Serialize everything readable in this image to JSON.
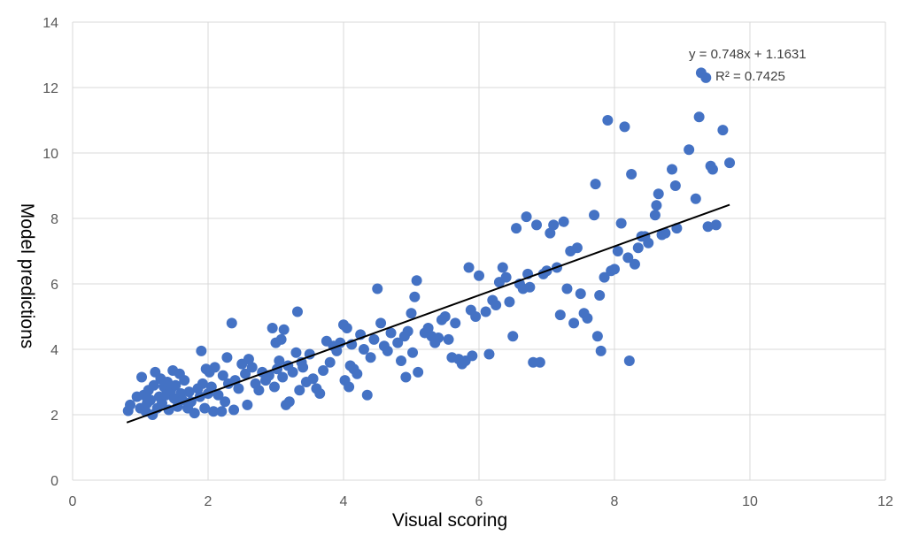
{
  "chart_data": {
    "type": "scatter",
    "xlabel": "Visual scoring",
    "ylabel": "Model predictions",
    "xlim": [
      0,
      12
    ],
    "ylim": [
      0,
      14
    ],
    "xticks": [
      0,
      2,
      4,
      6,
      8,
      10,
      12
    ],
    "yticks": [
      0,
      2,
      4,
      6,
      8,
      10,
      12,
      14
    ],
    "grid": true,
    "marker_color": "#4472c4",
    "trendline": {
      "slope": 0.748,
      "intercept": 1.1631,
      "x_range": [
        0.8,
        9.7
      ],
      "color": "#000000"
    },
    "annotations": [
      "y = 0.748x + 1.1631",
      "R² = 0.7425"
    ],
    "points": [
      [
        0.82,
        2.12
      ],
      [
        0.85,
        2.3
      ],
      [
        0.95,
        2.55
      ],
      [
        1.0,
        2.2
      ],
      [
        1.02,
        3.15
      ],
      [
        1.05,
        2.6
      ],
      [
        1.08,
        2.1
      ],
      [
        1.1,
        2.35
      ],
      [
        1.12,
        2.75
      ],
      [
        1.15,
        2.45
      ],
      [
        1.18,
        2.0
      ],
      [
        1.2,
        2.9
      ],
      [
        1.22,
        3.3
      ],
      [
        1.25,
        2.2
      ],
      [
        1.28,
        2.55
      ],
      [
        1.3,
        3.1
      ],
      [
        1.32,
        2.35
      ],
      [
        1.35,
        2.85
      ],
      [
        1.38,
        2.6
      ],
      [
        1.4,
        3.0
      ],
      [
        1.42,
        2.15
      ],
      [
        1.45,
        2.75
      ],
      [
        1.48,
        3.35
      ],
      [
        1.5,
        2.5
      ],
      [
        1.52,
        2.9
      ],
      [
        1.55,
        2.25
      ],
      [
        1.58,
        3.25
      ],
      [
        1.6,
        2.65
      ],
      [
        1.62,
        2.45
      ],
      [
        1.65,
        3.05
      ],
      [
        1.7,
        2.2
      ],
      [
        1.72,
        2.7
      ],
      [
        1.75,
        2.4
      ],
      [
        1.8,
        2.05
      ],
      [
        1.85,
        2.8
      ],
      [
        1.88,
        2.55
      ],
      [
        1.9,
        3.95
      ],
      [
        1.92,
        2.95
      ],
      [
        1.95,
        2.2
      ],
      [
        1.97,
        3.4
      ],
      [
        2.0,
        2.65
      ],
      [
        2.02,
        3.3
      ],
      [
        2.05,
        2.85
      ],
      [
        2.08,
        2.1
      ],
      [
        2.1,
        3.45
      ],
      [
        2.15,
        2.6
      ],
      [
        2.2,
        2.1
      ],
      [
        2.22,
        3.2
      ],
      [
        2.25,
        2.4
      ],
      [
        2.28,
        3.75
      ],
      [
        2.3,
        2.95
      ],
      [
        2.35,
        4.8
      ],
      [
        2.38,
        2.15
      ],
      [
        2.4,
        3.05
      ],
      [
        2.45,
        2.8
      ],
      [
        2.5,
        3.55
      ],
      [
        2.55,
        3.25
      ],
      [
        2.58,
        2.3
      ],
      [
        2.6,
        3.7
      ],
      [
        2.65,
        3.45
      ],
      [
        2.7,
        2.95
      ],
      [
        2.75,
        2.75
      ],
      [
        2.8,
        3.3
      ],
      [
        2.85,
        3.05
      ],
      [
        2.9,
        3.2
      ],
      [
        2.95,
        4.65
      ],
      [
        2.98,
        2.85
      ],
      [
        3.0,
        4.2
      ],
      [
        3.02,
        3.4
      ],
      [
        3.05,
        3.65
      ],
      [
        3.08,
        4.3
      ],
      [
        3.1,
        3.15
      ],
      [
        3.12,
        4.6
      ],
      [
        3.15,
        2.3
      ],
      [
        3.18,
        3.5
      ],
      [
        3.2,
        2.4
      ],
      [
        3.25,
        3.3
      ],
      [
        3.3,
        3.9
      ],
      [
        3.32,
        5.15
      ],
      [
        3.35,
        2.75
      ],
      [
        3.38,
        3.6
      ],
      [
        3.4,
        3.45
      ],
      [
        3.45,
        3.0
      ],
      [
        3.5,
        3.85
      ],
      [
        3.55,
        3.1
      ],
      [
        3.6,
        2.8
      ],
      [
        3.65,
        2.65
      ],
      [
        3.7,
        3.35
      ],
      [
        3.75,
        4.25
      ],
      [
        3.8,
        3.6
      ],
      [
        3.85,
        4.1
      ],
      [
        3.9,
        3.95
      ],
      [
        3.95,
        4.2
      ],
      [
        4.0,
        4.75
      ],
      [
        4.02,
        3.05
      ],
      [
        4.05,
        4.65
      ],
      [
        4.08,
        2.85
      ],
      [
        4.1,
        3.5
      ],
      [
        4.12,
        4.15
      ],
      [
        4.15,
        3.4
      ],
      [
        4.2,
        3.25
      ],
      [
        4.25,
        4.45
      ],
      [
        4.3,
        4.0
      ],
      [
        4.35,
        2.6
      ],
      [
        4.4,
        3.75
      ],
      [
        4.45,
        4.3
      ],
      [
        4.5,
        5.85
      ],
      [
        4.55,
        4.8
      ],
      [
        4.6,
        4.1
      ],
      [
        4.65,
        3.95
      ],
      [
        4.7,
        4.5
      ],
      [
        4.8,
        4.2
      ],
      [
        4.85,
        3.65
      ],
      [
        4.9,
        4.4
      ],
      [
        4.92,
        3.15
      ],
      [
        4.95,
        4.55
      ],
      [
        5.0,
        5.1
      ],
      [
        5.02,
        3.9
      ],
      [
        5.05,
        5.6
      ],
      [
        5.08,
        6.1
      ],
      [
        5.1,
        3.3
      ],
      [
        5.2,
        4.5
      ],
      [
        5.25,
        4.65
      ],
      [
        5.3,
        4.4
      ],
      [
        5.35,
        4.2
      ],
      [
        5.4,
        4.35
      ],
      [
        5.45,
        4.9
      ],
      [
        5.5,
        5.0
      ],
      [
        5.55,
        4.3
      ],
      [
        5.6,
        3.75
      ],
      [
        5.65,
        4.8
      ],
      [
        5.7,
        3.7
      ],
      [
        5.75,
        3.55
      ],
      [
        5.8,
        3.65
      ],
      [
        5.85,
        6.5
      ],
      [
        5.88,
        5.2
      ],
      [
        5.9,
        3.8
      ],
      [
        5.95,
        5.0
      ],
      [
        6.0,
        6.25
      ],
      [
        6.1,
        5.15
      ],
      [
        6.15,
        3.85
      ],
      [
        6.2,
        5.5
      ],
      [
        6.25,
        5.35
      ],
      [
        6.3,
        6.05
      ],
      [
        6.35,
        6.5
      ],
      [
        6.4,
        6.2
      ],
      [
        6.45,
        5.45
      ],
      [
        6.5,
        4.4
      ],
      [
        6.55,
        7.7
      ],
      [
        6.6,
        6.0
      ],
      [
        6.65,
        5.85
      ],
      [
        6.7,
        8.05
      ],
      [
        6.72,
        6.3
      ],
      [
        6.75,
        5.9
      ],
      [
        6.8,
        3.6
      ],
      [
        6.85,
        7.8
      ],
      [
        6.9,
        3.6
      ],
      [
        6.95,
        6.3
      ],
      [
        7.0,
        6.4
      ],
      [
        7.05,
        7.55
      ],
      [
        7.1,
        7.8
      ],
      [
        7.15,
        6.5
      ],
      [
        7.2,
        5.05
      ],
      [
        7.25,
        7.9
      ],
      [
        7.3,
        5.85
      ],
      [
        7.35,
        7.0
      ],
      [
        7.4,
        4.8
      ],
      [
        7.45,
        7.1
      ],
      [
        7.5,
        5.7
      ],
      [
        7.55,
        5.1
      ],
      [
        7.6,
        4.95
      ],
      [
        7.7,
        8.1
      ],
      [
        7.72,
        9.05
      ],
      [
        7.75,
        4.4
      ],
      [
        7.78,
        5.65
      ],
      [
        7.8,
        3.95
      ],
      [
        7.85,
        6.2
      ],
      [
        7.9,
        11.0
      ],
      [
        7.95,
        6.4
      ],
      [
        8.0,
        6.45
      ],
      [
        8.05,
        7.0
      ],
      [
        8.1,
        7.85
      ],
      [
        8.15,
        10.8
      ],
      [
        8.2,
        6.8
      ],
      [
        8.22,
        3.65
      ],
      [
        8.25,
        9.35
      ],
      [
        8.3,
        6.6
      ],
      [
        8.35,
        7.1
      ],
      [
        8.4,
        7.45
      ],
      [
        8.45,
        7.45
      ],
      [
        8.5,
        7.25
      ],
      [
        8.6,
        8.1
      ],
      [
        8.62,
        8.4
      ],
      [
        8.65,
        8.75
      ],
      [
        8.7,
        7.5
      ],
      [
        8.75,
        7.55
      ],
      [
        8.85,
        9.5
      ],
      [
        8.9,
        9.0
      ],
      [
        8.92,
        7.7
      ],
      [
        9.1,
        10.1
      ],
      [
        9.2,
        8.6
      ],
      [
        9.25,
        11.1
      ],
      [
        9.28,
        12.45
      ],
      [
        9.35,
        12.3
      ],
      [
        9.38,
        7.75
      ],
      [
        9.42,
        9.6
      ],
      [
        9.45,
        9.5
      ],
      [
        9.5,
        7.8
      ],
      [
        9.6,
        10.7
      ],
      [
        9.7,
        9.7
      ]
    ]
  }
}
